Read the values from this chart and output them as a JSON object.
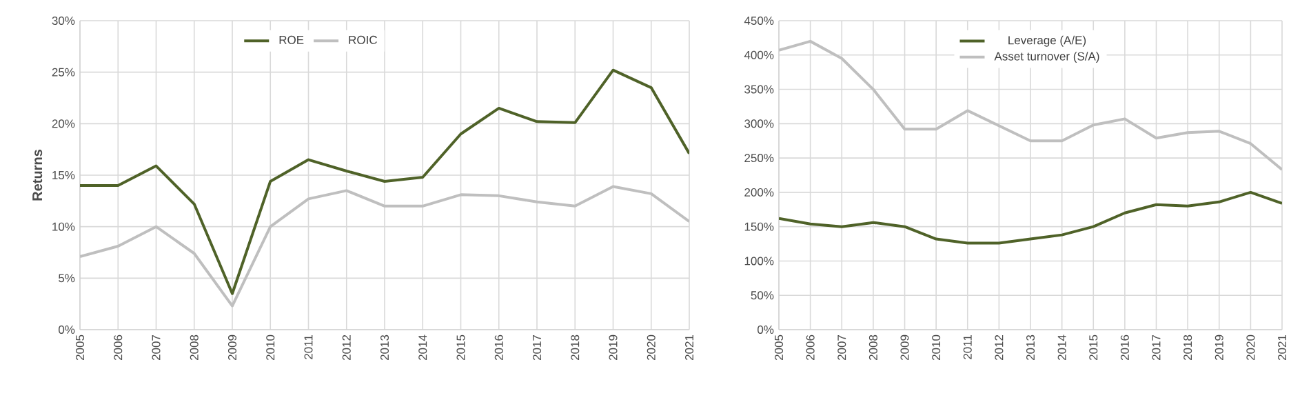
{
  "chart_data": [
    {
      "type": "line",
      "ylabel": "Returns",
      "categories": [
        "2005",
        "2006",
        "2007",
        "2008",
        "2009",
        "2010",
        "2011",
        "2012",
        "2013",
        "2014",
        "2015",
        "2016",
        "2017",
        "2018",
        "2019",
        "2020",
        "2021"
      ],
      "series": [
        {
          "name": "ROE",
          "color": "#4f6228",
          "values": [
            14,
            14,
            15.9,
            12.2,
            3.5,
            14.4,
            16.5,
            15.4,
            14.4,
            14.8,
            19,
            21.5,
            20.2,
            20.1,
            25.2,
            23.5,
            17.1
          ]
        },
        {
          "name": "ROIC",
          "color": "#bfbfbf",
          "values": [
            7.1,
            8.1,
            10,
            7.4,
            2.3,
            10,
            12.7,
            13.5,
            12,
            12,
            13.1,
            13,
            12.4,
            12,
            13.9,
            13.2,
            10.5
          ]
        }
      ],
      "ylim": [
        0,
        30
      ],
      "yticks": [
        {
          "value": 0,
          "label": "0%"
        },
        {
          "value": 5,
          "label": "5%"
        },
        {
          "value": 10,
          "label": "10%"
        },
        {
          "value": 15,
          "label": "15%"
        },
        {
          "value": 20,
          "label": "20%"
        },
        {
          "value": 25,
          "label": "25%"
        },
        {
          "value": 30,
          "label": "30%"
        }
      ],
      "grid": true,
      "legend": "top",
      "marker": "none"
    },
    {
      "type": "line",
      "categories": [
        "2005",
        "2006",
        "2007",
        "2008",
        "2009",
        "2010",
        "2011",
        "2012",
        "2013",
        "2014",
        "2015",
        "2016",
        "2017",
        "2018",
        "2019",
        "2020",
        "2021"
      ],
      "series": [
        {
          "name": "Leverage (A/E)",
          "color": "#4f6228",
          "values": [
            162,
            154,
            150,
            156,
            150,
            132,
            126,
            126,
            132,
            138,
            150,
            170,
            182,
            180,
            186,
            200,
            184
          ]
        },
        {
          "name": "Asset turnover (S/A)",
          "color": "#bfbfbf",
          "values": [
            407,
            420,
            395,
            350,
            292,
            292,
            319,
            297,
            275,
            275,
            298,
            307,
            279,
            287,
            289,
            271,
            233
          ]
        }
      ],
      "ylim": [
        0,
        450
      ],
      "yticks": [
        {
          "value": 0,
          "label": "0%"
        },
        {
          "value": 50,
          "label": "50%"
        },
        {
          "value": 100,
          "label": "100%"
        },
        {
          "value": 150,
          "label": "150%"
        },
        {
          "value": 200,
          "label": "200%"
        },
        {
          "value": 250,
          "label": "250%"
        },
        {
          "value": 300,
          "label": "300%"
        },
        {
          "value": 350,
          "label": "350%"
        },
        {
          "value": 400,
          "label": "400%"
        },
        {
          "value": 450,
          "label": "450%"
        }
      ],
      "grid": true,
      "legend": "top",
      "marker": "none"
    }
  ]
}
